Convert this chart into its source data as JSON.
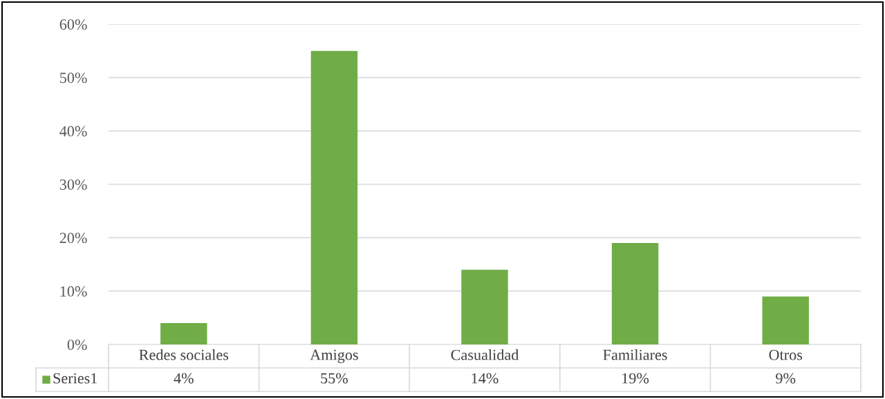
{
  "chart_data": {
    "type": "bar",
    "categories": [
      "Redes sociales",
      "Amigos",
      "Casualidad",
      "Familiares",
      "Otros"
    ],
    "series": [
      {
        "name": "Series1",
        "color": "#70ad47",
        "values": [
          4,
          55,
          14,
          19,
          9
        ]
      }
    ],
    "value_labels": [
      "4%",
      "55%",
      "14%",
      "19%",
      "9%"
    ],
    "ylim": [
      0,
      60
    ],
    "yticks": [
      {
        "value": 0,
        "label": "0%"
      },
      {
        "value": 10,
        "label": "10%"
      },
      {
        "value": 20,
        "label": "20%"
      },
      {
        "value": 30,
        "label": "30%"
      },
      {
        "value": 40,
        "label": "40%"
      },
      {
        "value": 50,
        "label": "50%"
      },
      {
        "value": 60,
        "label": "60%"
      }
    ],
    "grid": "y"
  }
}
